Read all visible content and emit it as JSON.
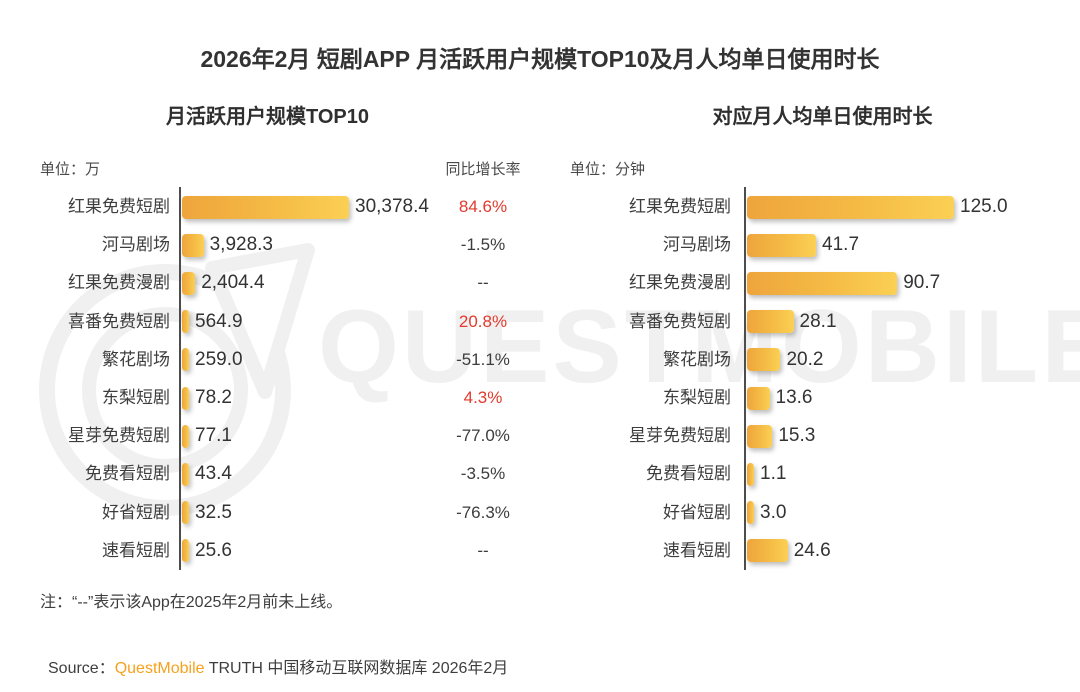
{
  "title": "2026年2月 短剧APP 月活跃用户规模TOP10及月人均单日使用时长",
  "watermark_text": "QUESTMOBILE",
  "left_chart": {
    "subtitle": "月活跃用户规模TOP10",
    "unit_label": "单位：万",
    "growth_header": "同比增长率"
  },
  "right_chart": {
    "subtitle": "对应月人均单日使用时长",
    "unit_label": "单位：分钟"
  },
  "note": "注：“--”表示该App在2025年2月前未上线。",
  "source": {
    "prefix": "Source：",
    "brand": "QuestMobile",
    "rest": " TRUTH 中国移动互联网数据库 2026年2月"
  },
  "colors": {
    "bar_gradient_start": "#eea53c",
    "bar_gradient_end": "#fbd054",
    "positive_growth": "#e23a2e",
    "text": "#3e3e3e",
    "brand_orange": "#f6a21d",
    "watermark": "#f1f0f1",
    "axis": "#4d4d4d"
  },
  "chart_data": [
    {
      "type": "bar",
      "orientation": "horizontal",
      "title": "月活跃用户规模TOP10",
      "unit": "万",
      "xlim": [
        0,
        31000
      ],
      "categories": [
        "红果免费短剧",
        "河马剧场",
        "红果免费漫剧",
        "喜番免费短剧",
        "繁花剧场",
        "东梨短剧",
        "星芽免费短剧",
        "免费看短剧",
        "好省短剧",
        "速看短剧"
      ],
      "values": [
        30378.4,
        3928.3,
        2404.4,
        564.9,
        259.0,
        78.2,
        77.1,
        43.4,
        32.5,
        25.6
      ],
      "value_labels": [
        "30,378.4",
        "3,928.3",
        "2,404.4",
        "564.9",
        "259.0",
        "78.2",
        "77.1",
        "43.4",
        "32.5",
        "25.6"
      ],
      "yoy_growth_header": "同比增长率",
      "yoy_growth_labels": [
        "84.6%",
        "-1.5%",
        "--",
        "20.8%",
        "-51.1%",
        "4.3%",
        "-77.0%",
        "-3.5%",
        "-76.3%",
        "--"
      ],
      "yoy_growth_positive": [
        true,
        false,
        false,
        true,
        false,
        true,
        false,
        false,
        false,
        false
      ]
    },
    {
      "type": "bar",
      "orientation": "horizontal",
      "title": "对应月人均单日使用时长",
      "unit": "分钟",
      "xlim": [
        0,
        130
      ],
      "categories": [
        "红果免费短剧",
        "河马剧场",
        "红果免费漫剧",
        "喜番免费短剧",
        "繁花剧场",
        "东梨短剧",
        "星芽免费短剧",
        "免费看短剧",
        "好省短剧",
        "速看短剧"
      ],
      "values": [
        125.0,
        41.7,
        90.7,
        28.1,
        20.2,
        13.6,
        15.3,
        1.1,
        3.0,
        24.6
      ],
      "value_labels": [
        "125.0",
        "41.7",
        "90.7",
        "28.1",
        "20.2",
        "13.6",
        "15.3",
        "1.1",
        "3.0",
        "24.6"
      ]
    }
  ]
}
